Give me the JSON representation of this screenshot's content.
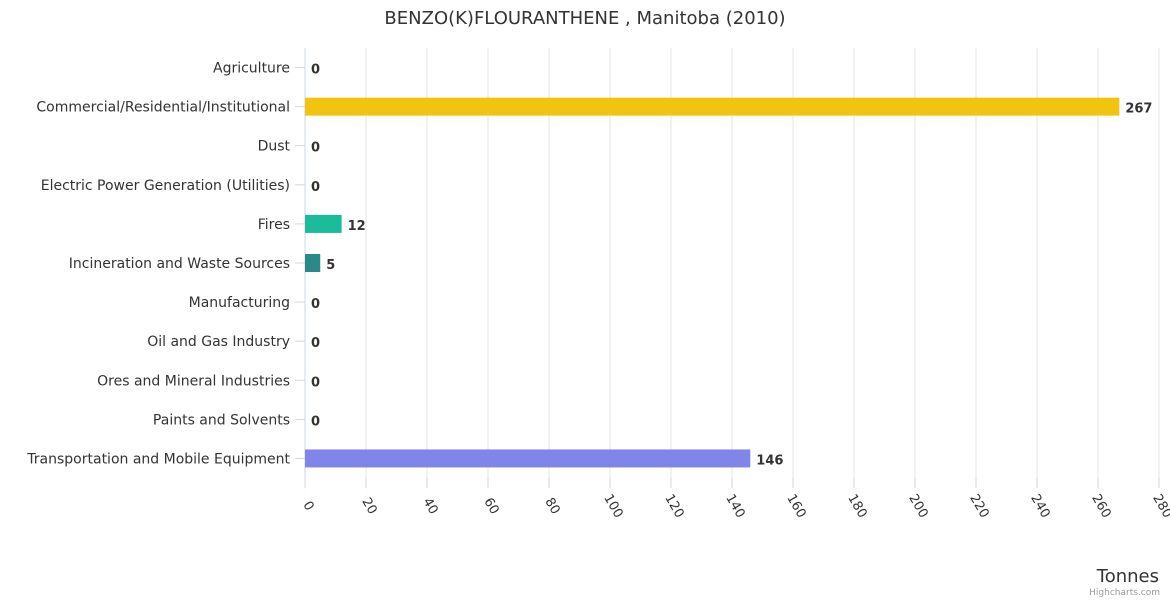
{
  "chart_data": {
    "type": "bar",
    "orientation": "horizontal",
    "title": "BENZO(K)FLOURANTHENE , Manitoba (2010)",
    "xlabel": "Tonnes",
    "credit": "Highcharts.com",
    "categories": [
      "Agriculture",
      "Commercial/Residential/Institutional",
      "Dust",
      "Electric Power Generation (Utilities)",
      "Fires",
      "Incineration and Waste Sources",
      "Manufacturing",
      "Oil and Gas Industry",
      "Ores and Mineral Industries",
      "Paints and Solvents",
      "Transportation and Mobile Equipment"
    ],
    "values": [
      0,
      267,
      0,
      0,
      12,
      5,
      0,
      0,
      0,
      0,
      146
    ],
    "colors": [
      "#7cb5ec",
      "#f1c40f",
      "#2c3e50",
      "#3498db",
      "#1abc9c",
      "#2a8a87",
      "#7cb5ec",
      "#7cb5ec",
      "#7cb5ec",
      "#7cb5ec",
      "#8085e9"
    ],
    "xlim": [
      0,
      280
    ],
    "xticks": [
      0,
      20,
      40,
      60,
      80,
      100,
      120,
      140,
      160,
      180,
      200,
      220,
      240,
      260,
      280
    ],
    "grid": true,
    "legend": "none"
  }
}
